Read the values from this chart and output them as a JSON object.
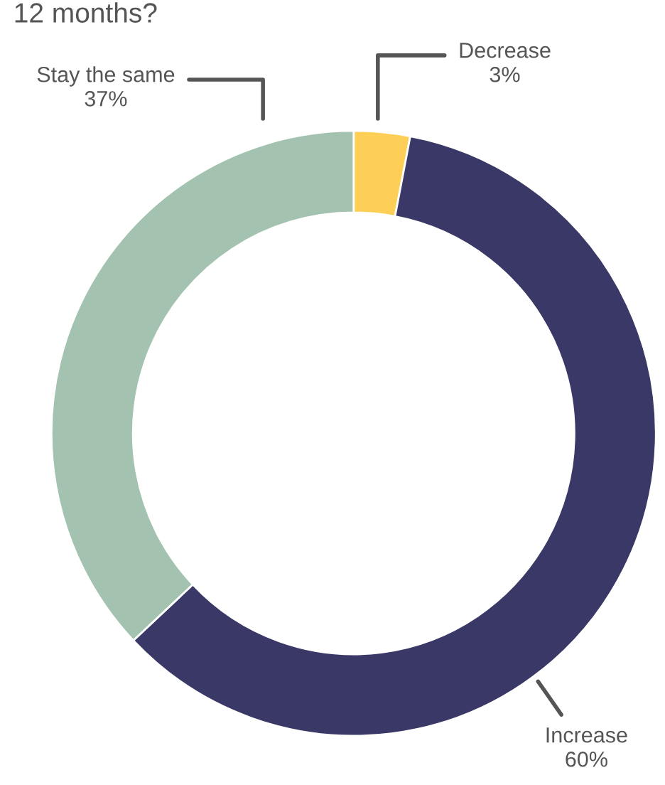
{
  "chart_data": {
    "type": "donut",
    "title": "12 months?",
    "categories": [
      "Decrease",
      "Increase",
      "Stay the same"
    ],
    "values": [
      3,
      60,
      37
    ],
    "value_labels": [
      "3%",
      "60%",
      "37%"
    ],
    "colors": [
      "#fecf56",
      "#393866",
      "#a3c3b0"
    ]
  }
}
